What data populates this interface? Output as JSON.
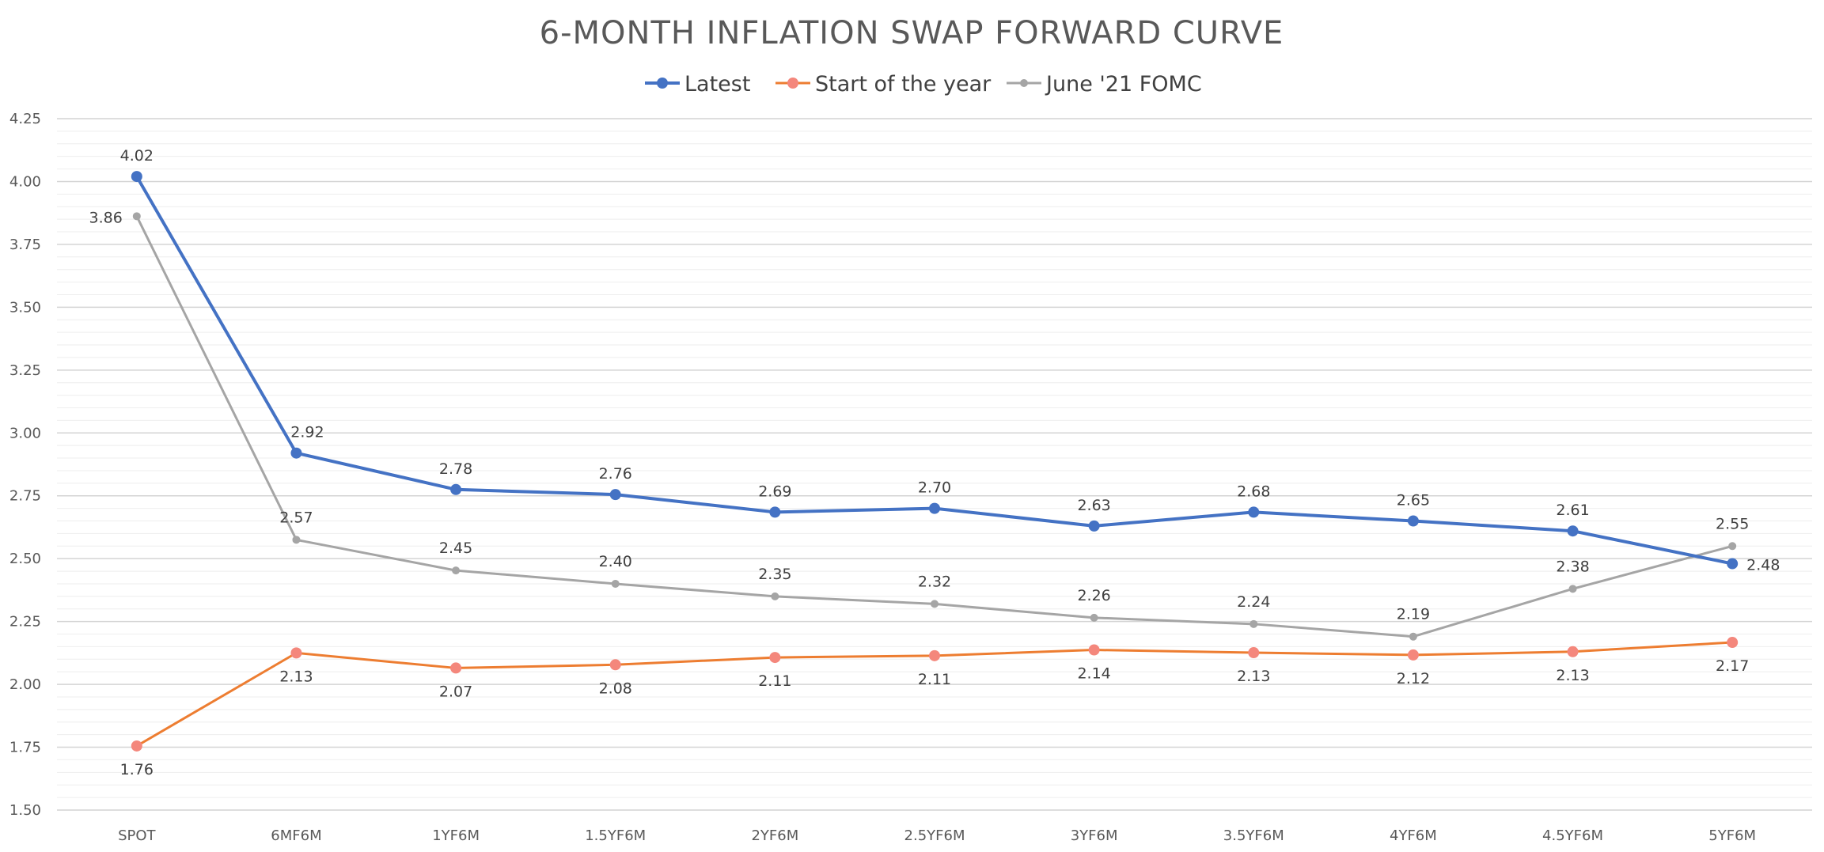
{
  "chart_data": {
    "type": "line",
    "title": "6-MONTH INFLATION SWAP FORWARD CURVE",
    "xlabel": "",
    "ylabel": "",
    "categories": [
      "SPOT",
      "6MF6M",
      "1YF6M",
      "1.5YF6M",
      "2YF6M",
      "2.5YF6M",
      "3YF6M",
      "3.5YF6M",
      "4YF6M",
      "4.5YF6M",
      "5YF6M"
    ],
    "ylim": [
      1.5,
      4.25
    ],
    "yticks": [
      "1.50",
      "1.75",
      "2.00",
      "2.25",
      "2.50",
      "2.75",
      "3.00",
      "3.25",
      "3.50",
      "3.75",
      "4.00",
      "4.25"
    ],
    "major_step": 0.25,
    "minor_step": 0.05,
    "legend_position": "top-center",
    "series": [
      {
        "name": "Latest",
        "color": "#4472c4",
        "values": [
          4.02,
          2.92,
          2.775,
          2.755,
          2.685,
          2.7,
          2.63,
          2.685,
          2.65,
          2.61,
          2.48
        ],
        "labels": [
          "4.02",
          "2.92",
          "2.78",
          "2.76",
          "2.69",
          "2.70",
          "2.63",
          "2.68",
          "2.65",
          "2.61",
          "2.48"
        ]
      },
      {
        "name": "Start of the year",
        "color": "#ed7d31",
        "marker_color": "#f4877c",
        "values": [
          1.755,
          2.125,
          2.065,
          2.078,
          2.107,
          2.114,
          2.137,
          2.126,
          2.117,
          2.13,
          2.167
        ],
        "labels": [
          "1.76",
          "2.13",
          "2.07",
          "2.08",
          "2.11",
          "2.11",
          "2.14",
          "2.13",
          "2.12",
          "2.13",
          "2.17"
        ]
      },
      {
        "name": "June '21 FOMC",
        "color": "#a5a5a5",
        "values": [
          3.862,
          2.575,
          2.453,
          2.4,
          2.35,
          2.32,
          2.265,
          2.24,
          2.19,
          2.38,
          2.55
        ],
        "labels": [
          "3.86",
          "2.57",
          "2.45",
          "2.40",
          "2.35",
          "2.32",
          "2.26",
          "2.24",
          "2.19",
          "2.38",
          "2.55"
        ]
      }
    ]
  }
}
